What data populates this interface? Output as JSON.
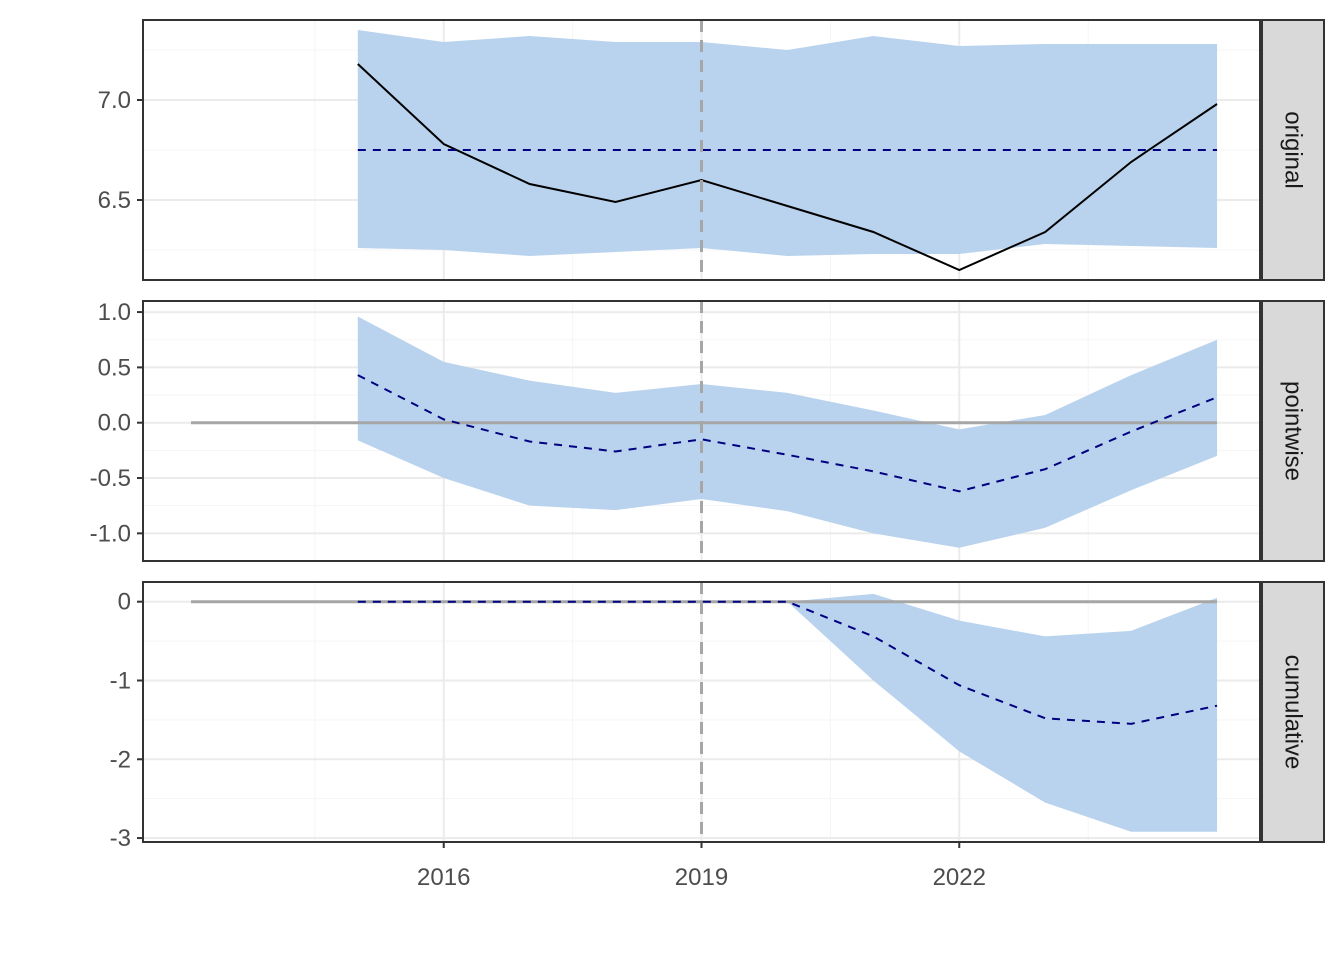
{
  "chart_data": {
    "type": "line",
    "title": "",
    "xlabel": "",
    "ylabel": "",
    "x": [
      2015.0,
      2016.0,
      2017.0,
      2018.0,
      2019.0,
      2020.0,
      2021.0,
      2022.0,
      2023.0,
      2024.0,
      2025.0
    ],
    "xlim": [
      2012.5,
      2025.5
    ],
    "x_ticks": [
      2016,
      2019,
      2022
    ],
    "x_tick_labels": [
      "2016",
      "2019",
      "2022"
    ],
    "intervention_x": 2019.0,
    "grid": true,
    "panels": [
      {
        "strip": "original",
        "ylim": [
          6.1,
          7.4
        ],
        "y_ticks": [
          6.5,
          7.0
        ],
        "y_tick_labels": [
          "6.5",
          "7.0"
        ],
        "series": [
          {
            "style": "solid-black",
            "values": [
              7.18,
              6.78,
              6.58,
              6.49,
              6.6,
              6.47,
              6.34,
              6.15,
              6.34,
              6.69,
              6.98
            ]
          },
          {
            "style": "dashed-navy",
            "values": [
              6.75,
              6.75,
              6.75,
              6.75,
              6.75,
              6.75,
              6.75,
              6.75,
              6.75,
              6.75,
              6.75
            ]
          }
        ],
        "band": {
          "lower": [
            6.26,
            6.25,
            6.22,
            6.24,
            6.26,
            6.22,
            6.23,
            6.23,
            6.28,
            6.27,
            6.26
          ],
          "upper": [
            7.35,
            7.29,
            7.32,
            7.29,
            7.29,
            7.25,
            7.32,
            7.27,
            7.28,
            7.28,
            7.28
          ]
        }
      },
      {
        "strip": "pointwise",
        "ylim": [
          -1.25,
          1.1
        ],
        "y_ticks": [
          -1.0,
          -0.5,
          0.0,
          0.5,
          1.0
        ],
        "y_tick_labels": [
          "-1.0",
          "-0.5",
          "0.0",
          "0.5",
          "1.0"
        ],
        "hline": 0.0,
        "series": [
          {
            "style": "dashed-navy",
            "values": [
              0.43,
              0.03,
              -0.17,
              -0.26,
              -0.15,
              -0.29,
              -0.44,
              -0.62,
              -0.42,
              -0.08,
              0.23
            ]
          }
        ],
        "band": {
          "lower": [
            -0.16,
            -0.5,
            -0.75,
            -0.79,
            -0.69,
            -0.8,
            -1.0,
            -1.13,
            -0.95,
            -0.61,
            -0.3
          ],
          "upper": [
            0.96,
            0.55,
            0.38,
            0.27,
            0.35,
            0.27,
            0.11,
            -0.06,
            0.07,
            0.43,
            0.75
          ]
        }
      },
      {
        "strip": "cumulative",
        "ylim": [
          -3.05,
          0.25
        ],
        "y_ticks": [
          -3,
          -2,
          -1,
          0
        ],
        "y_tick_labels": [
          "-3",
          "-2",
          "-1",
          "0"
        ],
        "hline": 0.0,
        "series": [
          {
            "style": "dashed-navy",
            "values": [
              0.0,
              0.0,
              0.0,
              0.0,
              0.0,
              0.0,
              -0.44,
              -1.06,
              -1.48,
              -1.55,
              -1.32
            ]
          }
        ],
        "band": {
          "lower": [
            0.0,
            0.0,
            0.0,
            0.0,
            0.0,
            0.0,
            -1.0,
            -1.9,
            -2.55,
            -2.92,
            -2.92
          ],
          "upper": [
            0.0,
            0.0,
            0.0,
            0.0,
            0.0,
            0.0,
            0.1,
            -0.24,
            -0.44,
            -0.37,
            0.05
          ]
        }
      }
    ],
    "colors": {
      "band": "#b9d3ee",
      "observed": "#000000",
      "expected": "#000080",
      "reference": "#a6a6a6",
      "strip_bg": "#d9d9d9",
      "border": "#333333",
      "grid_major": "#ebebeb",
      "grid_minor": "#f5f5f5",
      "tick_text": "#4d4d4d"
    }
  }
}
